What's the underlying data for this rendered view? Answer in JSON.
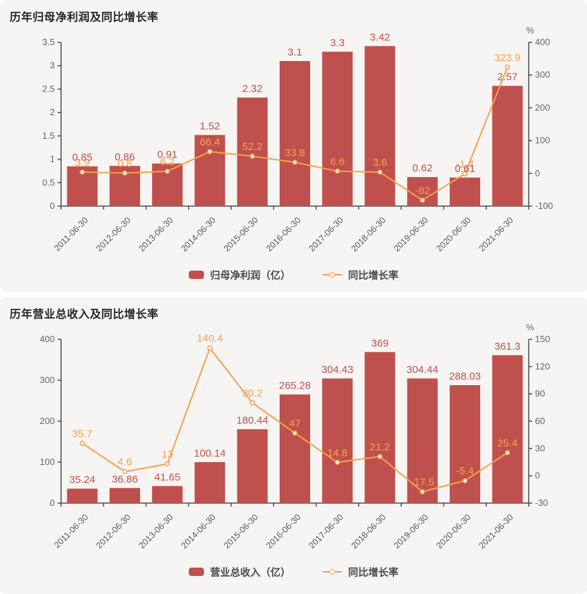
{
  "chart_data": [
    {
      "type": "bar+line",
      "title": "历年归母净利润及同比增长率",
      "categories": [
        "2011-06-30",
        "2012-06-30",
        "2013-06-30",
        "2014-06-30",
        "2015-06-30",
        "2016-06-30",
        "2017-06-30",
        "2018-06-30",
        "2019-06-30",
        "2020-06-30",
        "2021-06-30"
      ],
      "series": [
        {
          "name": "归母净利润（亿）",
          "type": "bar",
          "axis": "left",
          "values": [
            0.85,
            0.86,
            0.91,
            1.52,
            2.32,
            3.1,
            3.3,
            3.42,
            0.62,
            0.61,
            2.57
          ],
          "labels": [
            "0.85",
            "0.86",
            "0.91",
            "1.52",
            "2.32",
            "3.1",
            "3.3",
            "3.42",
            "0.62",
            "0.61",
            "2.57"
          ]
        },
        {
          "name": "同比增长率",
          "type": "line",
          "axis": "right",
          "values": [
            3.9,
            0.8,
            6.2,
            66.4,
            52.2,
            33.8,
            6.6,
            3.6,
            -82,
            -1.4,
            323.9
          ],
          "labels": [
            "3.9",
            "0.8",
            "6.2",
            "66.4",
            "52.2",
            "33.8",
            "6.6",
            "3.6",
            "-82",
            "-1.4",
            "323.9"
          ]
        }
      ],
      "left_axis": {
        "min": 0,
        "max": 3.5,
        "ticks": [
          "0",
          "0.5",
          "1",
          "1.5",
          "2",
          "2.5",
          "3",
          "3.5"
        ]
      },
      "right_axis": {
        "min": -100,
        "max": 400,
        "ticks": [
          "-100",
          "0",
          "100",
          "200",
          "300",
          "400"
        ],
        "unit": "%"
      },
      "legend": [
        {
          "label": "归母净利润（亿）"
        },
        {
          "label": "同比增长率"
        }
      ],
      "colors": {
        "bar": "#c0504d",
        "bar_label": "#c0504d",
        "line": "#f6a04d",
        "line_label": "#f6a04d",
        "axis": "#4d4d4d",
        "tick_label": "#666666",
        "x_label": "#595959",
        "background": "#f6f5f3"
      }
    },
    {
      "type": "bar+line",
      "title": "历年营业总收入及同比增长率",
      "categories": [
        "2011-06-30",
        "2012-06-30",
        "2013-06-30",
        "2014-06-30",
        "2015-06-30",
        "2016-06-30",
        "2017-06-30",
        "2018-06-30",
        "2019-06-30",
        "2020-06-30",
        "2021-06-30"
      ],
      "series": [
        {
          "name": "营业总收入（亿）",
          "type": "bar",
          "axis": "left",
          "values": [
            35.24,
            36.86,
            41.65,
            100.14,
            180.44,
            265.28,
            304.43,
            369,
            304.44,
            288.03,
            361.3
          ],
          "labels": [
            "35.24",
            "36.86",
            "41.65",
            "100.14",
            "180.44",
            "265.28",
            "304.43",
            "369",
            "304.44",
            "288.03",
            "361.3"
          ]
        },
        {
          "name": "同比增长率",
          "type": "line",
          "axis": "right",
          "values": [
            35.7,
            4.6,
            13,
            140.4,
            80.2,
            47,
            14.8,
            21.2,
            -17.5,
            -5.4,
            25.4
          ],
          "labels": [
            "35.7",
            "4.6",
            "13",
            "140.4",
            "80.2",
            "47",
            "14.8",
            "21.2",
            "-17.5",
            "-5.4",
            "25.4"
          ]
        }
      ],
      "left_axis": {
        "min": 0,
        "max": 400,
        "ticks": [
          "0",
          "100",
          "200",
          "300",
          "400"
        ]
      },
      "right_axis": {
        "min": -30,
        "max": 150,
        "ticks": [
          "-30",
          "0",
          "30",
          "60",
          "90",
          "120",
          "150"
        ],
        "unit": "%"
      },
      "legend": [
        {
          "label": "营业总收入（亿）"
        },
        {
          "label": "同比增长率"
        }
      ],
      "colors": {
        "bar": "#c0504d",
        "bar_label": "#c0504d",
        "line": "#f6a04d",
        "line_label": "#f6a04d",
        "axis": "#4d4d4d",
        "tick_label": "#666666",
        "x_label": "#595959",
        "background": "#f6f5f3"
      }
    }
  ]
}
